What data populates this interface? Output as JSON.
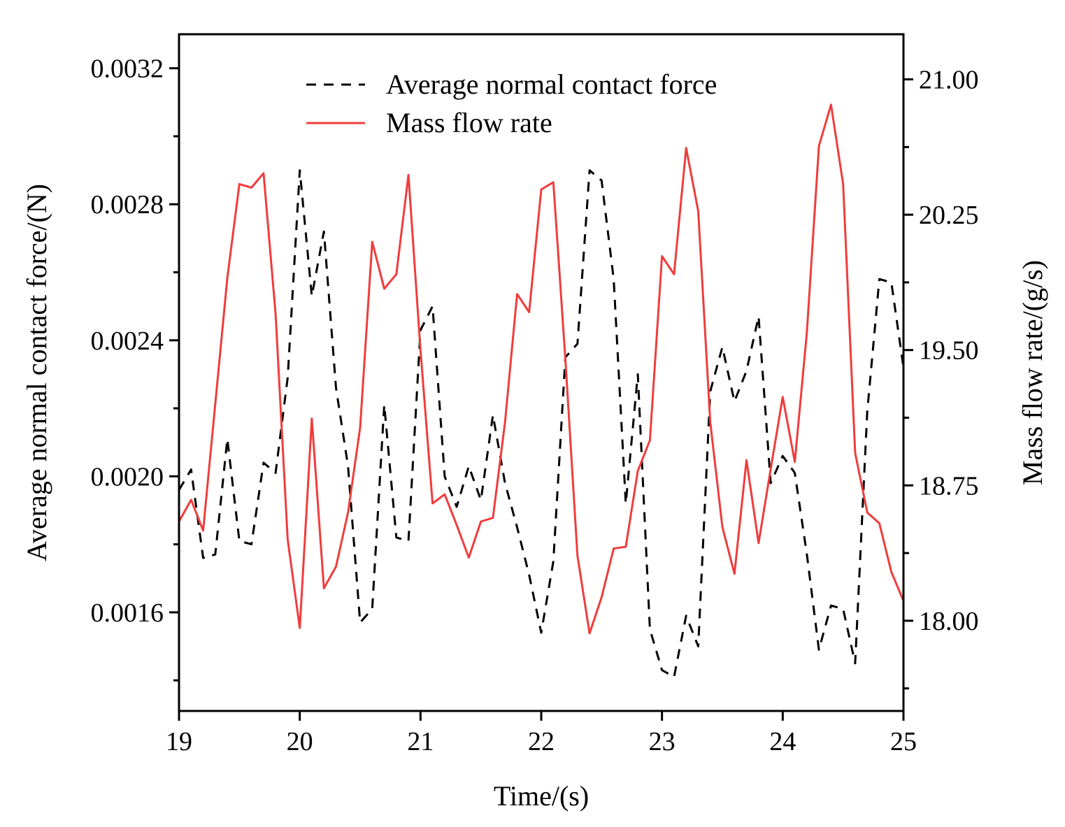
{
  "chart_data": {
    "type": "line",
    "title": "",
    "xlabel": "Time/(s)",
    "ylabel_left": "Average normal contact force/(N)",
    "ylabel_right": "Mass flow rate/(g/s)",
    "xlim": [
      19,
      25
    ],
    "ylim_left": [
      0.00131,
      0.0033
    ],
    "ylim_right": [
      17.5,
      21.25
    ],
    "x_ticks": [
      "19",
      "20",
      "21",
      "22",
      "23",
      "24",
      "25"
    ],
    "x_tick_values": [
      19,
      20,
      21,
      22,
      23,
      24,
      25
    ],
    "y_left_ticks": [
      "0.0016",
      "0.0020",
      "0.0024",
      "0.0028",
      "0.0032"
    ],
    "y_left_tick_values": [
      0.0016,
      0.002,
      0.0024,
      0.0028,
      0.0032
    ],
    "y_left_minor_tick_values": [
      0.0014,
      0.0018,
      0.0022,
      0.0026,
      0.003
    ],
    "y_right_ticks": [
      "18.00",
      "18.75",
      "19.50",
      "20.25",
      "21.00"
    ],
    "y_right_tick_values": [
      18.0,
      18.75,
      19.5,
      20.25,
      21.0
    ],
    "y_right_minor_tick_values": [
      17.625,
      18.375,
      19.125,
      19.875,
      20.625
    ],
    "legend_position": "top",
    "series": [
      {
        "name": "Average normal contact force",
        "axis": "left",
        "color": "#000000",
        "style": "dashed",
        "x": [
          19.0,
          19.1,
          19.2,
          19.3,
          19.4,
          19.5,
          19.6,
          19.7,
          19.8,
          19.9,
          20.0,
          20.1,
          20.2,
          20.3,
          20.4,
          20.5,
          20.6,
          20.7,
          20.8,
          20.9,
          21.0,
          21.1,
          21.2,
          21.3,
          21.4,
          21.5,
          21.6,
          21.7,
          21.8,
          21.9,
          22.0,
          22.1,
          22.2,
          22.3,
          22.4,
          22.5,
          22.6,
          22.7,
          22.8,
          22.9,
          23.0,
          23.1,
          23.2,
          23.3,
          23.4,
          23.5,
          23.6,
          23.7,
          23.8,
          23.9,
          24.0,
          24.1,
          24.2,
          24.3,
          24.4,
          24.5,
          24.6,
          24.7,
          24.8,
          24.9,
          25.0
        ],
        "values": [
          0.00196,
          0.00202,
          0.00176,
          0.00177,
          0.00211,
          0.00181,
          0.0018,
          0.00204,
          0.00201,
          0.00229,
          0.0029,
          0.00253,
          0.00272,
          0.00226,
          0.00203,
          0.00157,
          0.00161,
          0.00221,
          0.00182,
          0.00181,
          0.00243,
          0.0025,
          0.002,
          0.00191,
          0.00203,
          0.00193,
          0.00218,
          0.00198,
          0.00185,
          0.00171,
          0.00154,
          0.00175,
          0.00235,
          0.00239,
          0.0029,
          0.00287,
          0.00258,
          0.00192,
          0.0023,
          0.00155,
          0.00143,
          0.00141,
          0.00159,
          0.0015,
          0.00225,
          0.00238,
          0.00222,
          0.00231,
          0.00247,
          0.00198,
          0.00206,
          0.00201,
          0.00177,
          0.00149,
          0.00162,
          0.00161,
          0.00145,
          0.00219,
          0.00258,
          0.00257,
          0.00232
        ]
      },
      {
        "name": "Mass flow rate",
        "axis": "right",
        "color": "#f03c3c",
        "style": "solid",
        "x": [
          19.0,
          19.1,
          19.2,
          19.3,
          19.4,
          19.5,
          19.6,
          19.7,
          19.8,
          19.9,
          20.0,
          20.1,
          20.2,
          20.3,
          20.4,
          20.5,
          20.6,
          20.7,
          20.8,
          20.9,
          21.0,
          21.1,
          21.2,
          21.3,
          21.4,
          21.5,
          21.6,
          21.7,
          21.8,
          21.9,
          22.0,
          22.1,
          22.2,
          22.3,
          22.4,
          22.5,
          22.6,
          22.7,
          22.8,
          22.9,
          23.0,
          23.1,
          23.2,
          23.3,
          23.4,
          23.5,
          23.6,
          23.7,
          23.8,
          23.9,
          24.0,
          24.1,
          24.2,
          24.3,
          24.4,
          24.5,
          24.6,
          24.7,
          24.8,
          24.9,
          25.0
        ],
        "values": [
          18.55,
          18.67,
          18.5,
          19.2,
          19.9,
          20.42,
          20.4,
          20.48,
          19.7,
          18.45,
          17.96,
          19.12,
          18.18,
          18.3,
          18.6,
          19.07,
          20.1,
          19.84,
          19.92,
          20.47,
          19.5,
          18.65,
          18.7,
          18.53,
          18.35,
          18.55,
          18.57,
          19.1,
          19.81,
          19.71,
          20.39,
          20.43,
          19.45,
          18.36,
          17.93,
          18.13,
          18.4,
          18.41,
          18.83,
          19.0,
          20.02,
          19.92,
          20.62,
          20.27,
          19.1,
          18.52,
          18.26,
          18.89,
          18.43,
          18.84,
          19.24,
          18.88,
          19.6,
          20.63,
          20.86,
          20.42,
          18.93,
          18.6,
          18.54,
          18.27,
          18.11
        ]
      }
    ]
  }
}
